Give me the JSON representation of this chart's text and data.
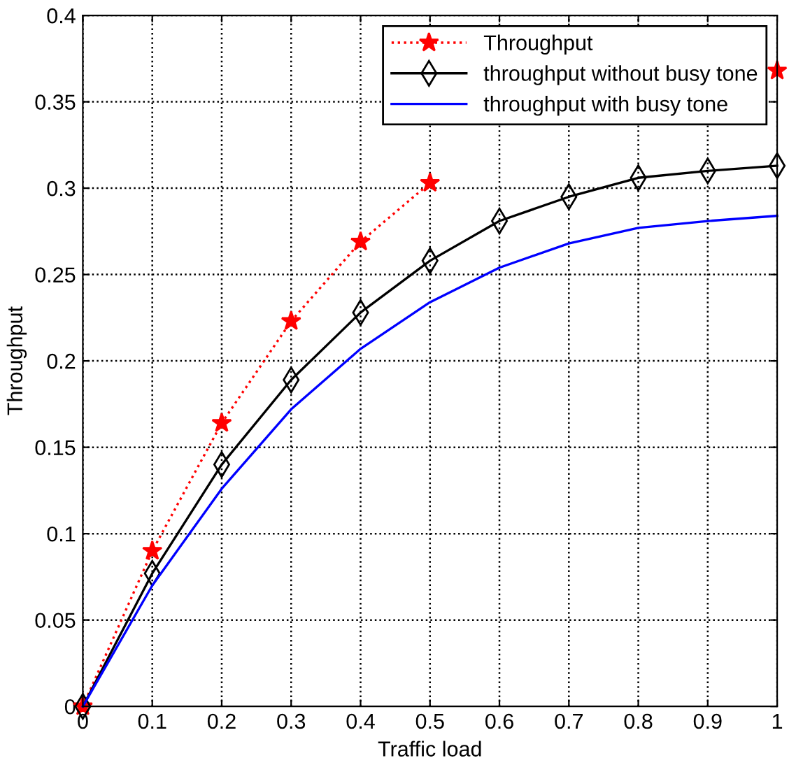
{
  "chart_data": {
    "type": "line",
    "xlabel": "Traffic load",
    "ylabel": "Throughput",
    "x": [
      0,
      0.1,
      0.2,
      0.3,
      0.4,
      0.5,
      0.6,
      0.7,
      0.8,
      0.9,
      1
    ],
    "xlim": [
      0,
      1
    ],
    "xticks": [
      0,
      0.1,
      0.2,
      0.3,
      0.4,
      0.5,
      0.6,
      0.7,
      0.8,
      0.9,
      1
    ],
    "ylim": [
      0,
      0.4
    ],
    "yticks": [
      0,
      0.05,
      0.1,
      0.15,
      0.2,
      0.25,
      0.3,
      0.35,
      0.4
    ],
    "grid": true,
    "legend": "top right",
    "series": [
      {
        "name": "Throughput",
        "color": "#ff0000",
        "marker": "star",
        "line_style": "dotted",
        "values": [
          0,
          0.09,
          0.164,
          0.223,
          0.269,
          0.303,
          null,
          null,
          null,
          null,
          0.368
        ]
      },
      {
        "name": "throughput without busy tone",
        "color": "#000000",
        "marker": "diamond",
        "line_style": "solid",
        "values": [
          0,
          0.077,
          0.14,
          0.189,
          0.228,
          0.258,
          0.281,
          0.295,
          0.306,
          0.31,
          0.313
        ]
      },
      {
        "name": "throughput with busy tone",
        "color": "#0000ff",
        "marker": "none",
        "line_style": "solid",
        "values": [
          0,
          0.07,
          0.126,
          0.172,
          0.207,
          0.234,
          0.254,
          0.268,
          0.277,
          0.281,
          0.284
        ]
      }
    ]
  }
}
